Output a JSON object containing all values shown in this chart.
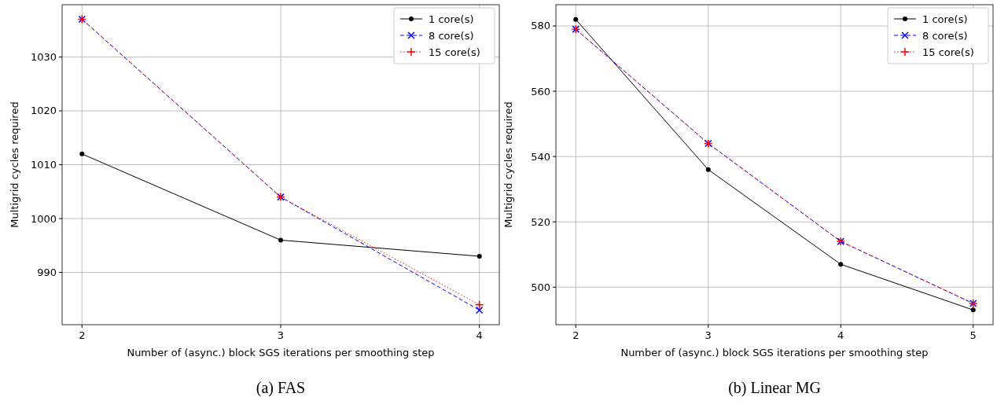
{
  "chart_data": [
    {
      "type": "line",
      "xlabel": "Number of (async.) block SGS iterations per smoothing step",
      "ylabel": "Multigrid cycles required",
      "x": [
        2,
        3,
        4
      ],
      "xlim": [
        1.9,
        4.1
      ],
      "xticks": [
        2,
        3,
        4
      ],
      "ylim": [
        980.3,
        1039.7
      ],
      "yticks": [
        990,
        1000,
        1010,
        1020,
        1030
      ],
      "grid": true,
      "legend": "top right",
      "annotations": [
        "(a) FAS"
      ],
      "series": [
        {
          "name": "1 core(s)",
          "color": "#000000",
          "marker": "circle",
          "line_style": "solid",
          "values": [
            1012,
            996,
            993
          ]
        },
        {
          "name": "8 core(s)",
          "color": "#0000ff",
          "marker": "x",
          "line_style": "dashed",
          "values": [
            1037,
            1004,
            983
          ]
        },
        {
          "name": "15 core(s)",
          "color": "#ff0000",
          "marker": "cross",
          "line_style": "dotted",
          "values": [
            1037,
            1004,
            984
          ]
        }
      ]
    },
    {
      "type": "line",
      "xlabel": "Number of (async.) block SGS iterations per smoothing step",
      "ylabel": "Multigrid cycles required",
      "x": [
        2,
        3,
        4,
        5
      ],
      "xlim": [
        1.85,
        5.15
      ],
      "xticks": [
        2,
        3,
        4,
        5
      ],
      "ylim": [
        488.5,
        586.5
      ],
      "yticks": [
        500,
        520,
        540,
        560,
        580
      ],
      "grid": true,
      "legend": "top right",
      "annotations": [
        "(b) Linear MG"
      ],
      "series": [
        {
          "name": "1 core(s)",
          "color": "#000000",
          "marker": "circle",
          "line_style": "solid",
          "values": [
            582,
            536,
            507,
            493
          ]
        },
        {
          "name": "8 core(s)",
          "color": "#0000ff",
          "marker": "x",
          "line_style": "dashed",
          "values": [
            579,
            544,
            514,
            495
          ]
        },
        {
          "name": "15 core(s)",
          "color": "#ff0000",
          "marker": "cross",
          "line_style": "dotted",
          "values": [
            579,
            544,
            514,
            495
          ]
        }
      ]
    }
  ]
}
